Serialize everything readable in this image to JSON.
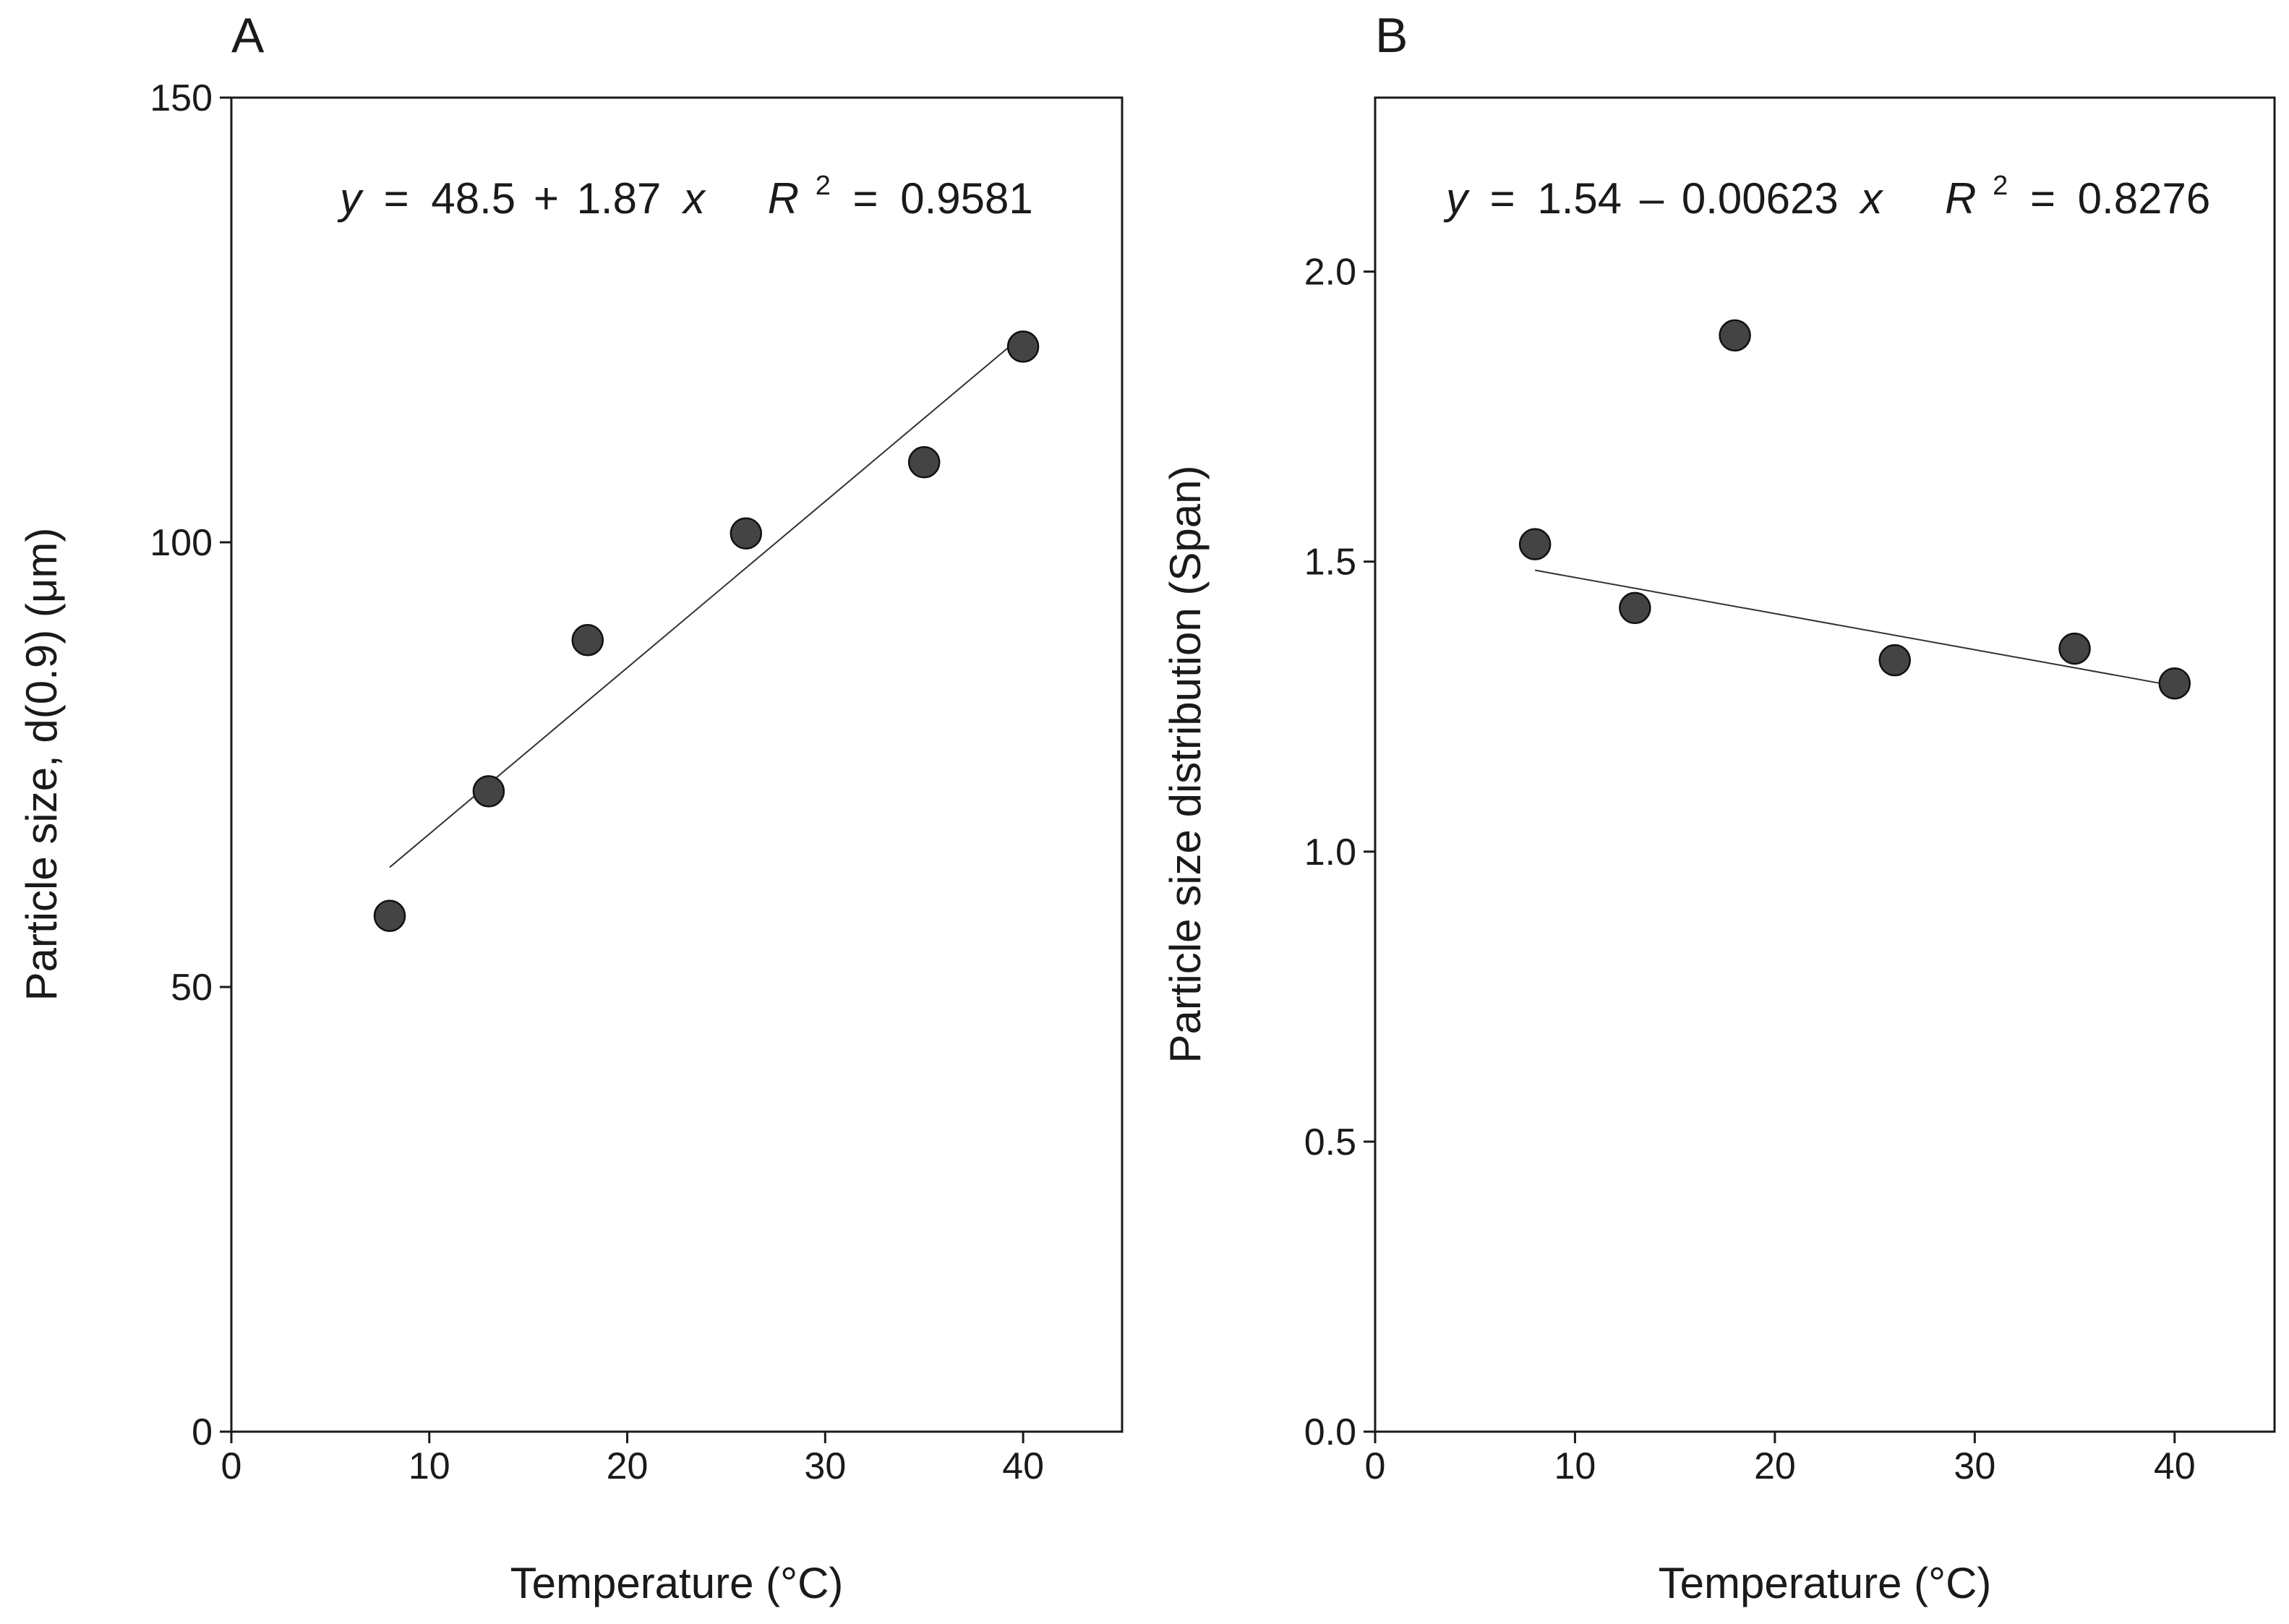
{
  "chart_data": [
    {
      "panel": "A",
      "type": "scatter",
      "xlabel": "Temperature (°C)",
      "ylabel": "Particle size, d(0.9) (μm)",
      "xlim": [
        0,
        45
      ],
      "ylim": [
        0,
        150
      ],
      "xticks": [
        0,
        10,
        20,
        30,
        40
      ],
      "yticks": [
        0,
        50,
        100,
        150
      ],
      "x": [
        8,
        13,
        18,
        26,
        35,
        40
      ],
      "y": [
        58,
        72,
        89,
        101,
        109,
        122
      ],
      "fit": {
        "intercept": 48.5,
        "slope": 1.87,
        "xrange": [
          8,
          40
        ]
      },
      "equation": {
        "y_var": "y",
        "eq": "=",
        "intercept": "48.5",
        "sign": "+",
        "slope": "1.87",
        "x_var": "x",
        "r_var": "R",
        "r_exp": "2",
        "r_eq": "=",
        "r_value": "0.9581"
      },
      "grid": false,
      "legend": "none"
    },
    {
      "panel": "B",
      "type": "scatter",
      "xlabel": "Temperature (°C)",
      "ylabel": "Particle size distribution (Span)",
      "xlim": [
        0,
        45
      ],
      "ylim": [
        0,
        2.3
      ],
      "xticks": [
        0,
        10,
        20,
        30,
        40
      ],
      "yticks": [
        0.0,
        0.5,
        1.0,
        1.5,
        2.0
      ],
      "ytick_labels": [
        "0.0",
        "0.5",
        "1.0",
        "1.5",
        "2.0"
      ],
      "x": [
        8,
        13,
        18,
        26,
        35,
        40
      ],
      "y": [
        1.53,
        1.42,
        1.89,
        1.33,
        1.35,
        1.29
      ],
      "fit": {
        "intercept": 1.535,
        "slope": -0.00623,
        "xrange": [
          8,
          40
        ]
      },
      "equation": {
        "y_var": "y",
        "eq": "=",
        "intercept": "1.54",
        "sign": "–",
        "slope": "0.00623",
        "x_var": "x",
        "r_var": "R",
        "r_exp": "2",
        "r_eq": "=",
        "r_value": "0.8276"
      },
      "grid": false,
      "legend": "none"
    }
  ]
}
